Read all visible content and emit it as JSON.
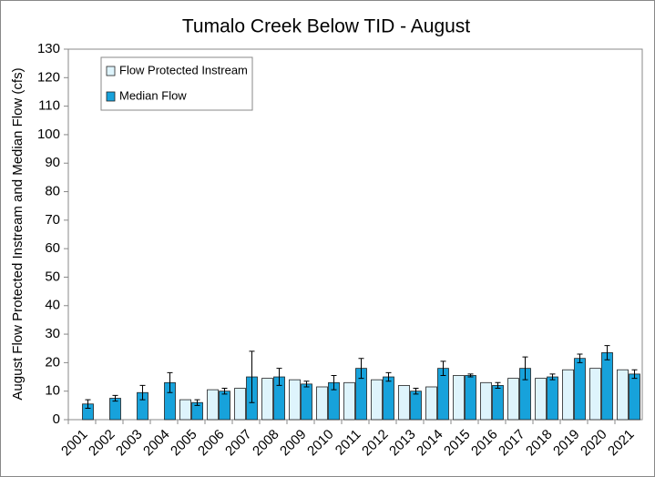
{
  "chart_data": {
    "type": "bar",
    "title": "Tumalo Creek Below TID - August",
    "y_label": "August Flow  Protected Instream and Median Flow (cfs)",
    "categories": [
      "2001",
      "2002",
      "2003",
      "2004",
      "2005",
      "2006",
      "2007",
      "2008",
      "2009",
      "2010",
      "2011",
      "2012",
      "2013",
      "2014",
      "2015",
      "2016",
      "2017",
      "2018",
      "2019",
      "2020",
      "2021"
    ],
    "series": [
      {
        "name": "Flow Protected Instream",
        "color": "#def4fc",
        "values": [
          null,
          null,
          null,
          null,
          7,
          10.5,
          11,
          14.5,
          14,
          11.5,
          13,
          14,
          12,
          11.5,
          15.5,
          13,
          14.5,
          14.5,
          17.5,
          18,
          17.5
        ]
      },
      {
        "name": "Median Flow",
        "color": "#17a2db",
        "values": [
          5.5,
          7.5,
          9.5,
          13,
          6,
          10,
          15,
          15,
          12.5,
          13,
          18,
          15,
          10,
          18,
          15.5,
          12,
          18,
          15,
          21.5,
          23.5,
          16
        ],
        "errors": [
          1.5,
          1,
          2.5,
          3.5,
          1,
          1,
          9,
          3,
          1,
          2.5,
          3.5,
          1.5,
          1,
          2.5,
          0.5,
          1,
          4,
          1,
          1.5,
          2.5,
          1.5
        ]
      }
    ],
    "ylim": [
      0,
      130
    ],
    "yticks": [
      0,
      10,
      20,
      30,
      40,
      50,
      60,
      70,
      80,
      90,
      100,
      110,
      120,
      130
    ],
    "grid": false,
    "legend": "upper-left"
  }
}
